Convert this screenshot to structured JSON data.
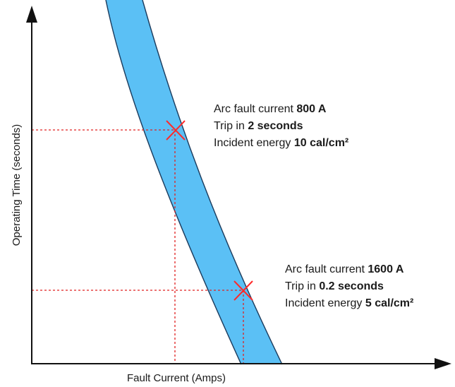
{
  "diagram": {
    "x_axis_label": "Fault Current (Amps)",
    "y_axis_label": "Operating Time (seconds)",
    "band_color": "#5bc0f5",
    "band_edge_color": "#1a3a5c",
    "marker_color": "#ff2a2a",
    "guide_color": "#e02020",
    "annotations": [
      {
        "line1_prefix": "Arc fault current ",
        "line1_value": "800 A",
        "line2_prefix": "Trip in ",
        "line2_value": "2 seconds",
        "line3_prefix": "Incident energy ",
        "line3_value": "10 cal/cm²"
      },
      {
        "line1_prefix": "Arc fault current ",
        "line1_value": "1600 A",
        "line2_prefix": "Trip in ",
        "line2_value": "0.2 seconds",
        "line3_prefix": "Incident energy ",
        "line3_value": "5 cal/cm²"
      }
    ]
  }
}
